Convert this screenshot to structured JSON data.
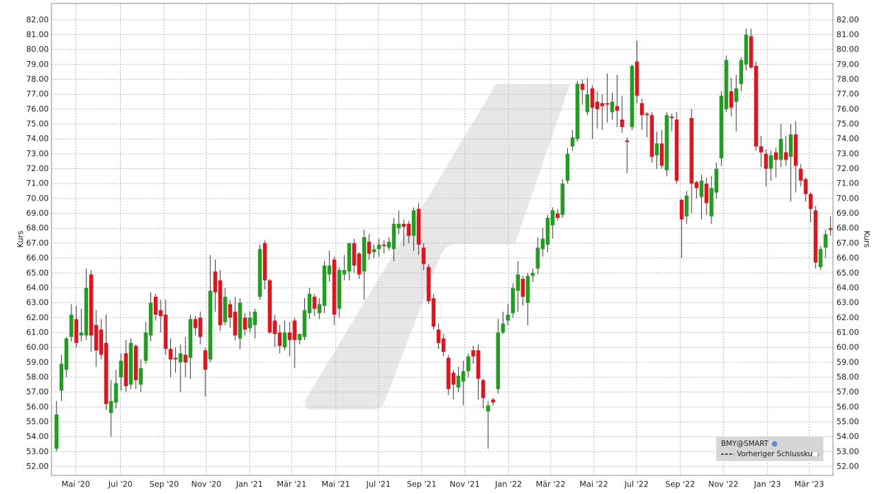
{
  "chart_data": {
    "type": "candlestick",
    "y_label": "Kurs",
    "y2_label": "Kurs",
    "series_name": "BMY@SMART",
    "reference_name": "Vorheriger Schlusskurs",
    "legend_position": "lower right",
    "grid": true,
    "up_color": "#1f9e1f",
    "down_color": "#e3121b",
    "xlim": [
      -1,
      156.5
    ],
    "ylim": [
      51.4,
      83.1
    ],
    "xticks": [
      {
        "value": 3.9,
        "label": "Mai '20"
      },
      {
        "value": 12.9,
        "label": "Jul '20"
      },
      {
        "value": 21.7,
        "label": "Sep '20"
      },
      {
        "value": 30.2,
        "label": "Nov '20"
      },
      {
        "value": 38.9,
        "label": "Jan '21"
      },
      {
        "value": 47.4,
        "label": "Mär '21"
      },
      {
        "value": 56.3,
        "label": "Mai '21"
      },
      {
        "value": 64.9,
        "label": "Jul '21"
      },
      {
        "value": 73.6,
        "label": "Sep '21"
      },
      {
        "value": 82.3,
        "label": "Nov '21"
      },
      {
        "value": 91.1,
        "label": "Jan '22"
      },
      {
        "value": 99.6,
        "label": "Mär '22"
      },
      {
        "value": 108.3,
        "label": "Mai '22"
      },
      {
        "value": 116.9,
        "label": "Jul '22"
      },
      {
        "value": 125.7,
        "label": "Sep '22"
      },
      {
        "value": 134.4,
        "label": "Nov '22"
      },
      {
        "value": 143.3,
        "label": "Jan '23"
      },
      {
        "value": 151.7,
        "label": "Mär '23"
      }
    ],
    "yticks": [
      {
        "value": 52,
        "label": "52.00"
      },
      {
        "value": 53,
        "label": "53.00"
      },
      {
        "value": 54,
        "label": "54.00"
      },
      {
        "value": 55,
        "label": "55.00"
      },
      {
        "value": 56,
        "label": "56.00"
      },
      {
        "value": 57,
        "label": "57.00"
      },
      {
        "value": 58,
        "label": "58.00"
      },
      {
        "value": 59,
        "label": "59.00"
      },
      {
        "value": 60,
        "label": "60.00"
      },
      {
        "value": 61,
        "label": "61.00"
      },
      {
        "value": 62,
        "label": "62.00"
      },
      {
        "value": 63,
        "label": "63.00"
      },
      {
        "value": 64,
        "label": "64.00"
      },
      {
        "value": 65,
        "label": "65.00"
      },
      {
        "value": 66,
        "label": "66.00"
      },
      {
        "value": 67,
        "label": "67.00"
      },
      {
        "value": 68,
        "label": "68.00"
      },
      {
        "value": 69,
        "label": "69.00"
      },
      {
        "value": 70,
        "label": "70.00"
      },
      {
        "value": 71,
        "label": "71.00"
      },
      {
        "value": 72,
        "label": "72.00"
      },
      {
        "value": 73,
        "label": "73.00"
      },
      {
        "value": 74,
        "label": "74.00"
      },
      {
        "value": 75,
        "label": "75.00"
      },
      {
        "value": 76,
        "label": "76.00"
      },
      {
        "value": 77,
        "label": "77.00"
      },
      {
        "value": 78,
        "label": "78.00"
      },
      {
        "value": 79,
        "label": "79.00"
      },
      {
        "value": 80,
        "label": "80.00"
      },
      {
        "value": 81,
        "label": "81.00"
      },
      {
        "value": 82,
        "label": "82.00"
      }
    ],
    "open": [
      53.2,
      57.1,
      58.5,
      60.7,
      61.9,
      60.8,
      60.8,
      64.9,
      61.5,
      61.2,
      60.3,
      55.6,
      56.3,
      58.0,
      59.6,
      57.5,
      60.1,
      57.5,
      59.1,
      60.8,
      63.4,
      62.5,
      62.2,
      59.9,
      59.3,
      59.0,
      59.5,
      59.3,
      61.9,
      62.0,
      59.8,
      59.2,
      65.1,
      64.5,
      61.7,
      62.9,
      62.4,
      60.6,
      62.0,
      61.3,
      61.5,
      63.4,
      67.0,
      64.5,
      61.8,
      61.0,
      60.0,
      61.0,
      61.8,
      60.5,
      60.7,
      62.3,
      63.4,
      62.3,
      62.8,
      64.9,
      65.9,
      62.6,
      64.9,
      65.1,
      67.0,
      66.3,
      65.1,
      67.1,
      66.4,
      66.6,
      66.9,
      66.7,
      66.6,
      68.0,
      68.3,
      68.3,
      67.5,
      69.3,
      66.7,
      65.4,
      63.3,
      61.2,
      60.6,
      59.3,
      58.3,
      57.3,
      57.7,
      58.4,
      59.8,
      59.8,
      57.8,
      55.7,
      56.5,
      57.2,
      61.0,
      61.8,
      62.3,
      63.8,
      64.6,
      63.0,
      64.8,
      65.3,
      66.6,
      66.9,
      68.2,
      69.0,
      68.9,
      71.2,
      73.5,
      74.0,
      77.7,
      75.8,
      77.4,
      76.5,
      76.4,
      76.4,
      75.8,
      76.2,
      75.3,
      73.9,
      74.8,
      79.2,
      76.4,
      75.7,
      75.6,
      72.9,
      73.7,
      71.9,
      75.5,
      75.3,
      69.9,
      68.8,
      75.4,
      71.1,
      70.1,
      71.0,
      68.8,
      70.4,
      72.7,
      76.0,
      77.2,
      76.5,
      77.7,
      79.0,
      80.9,
      78.9,
      73.5,
      73.0,
      72.0,
      73.1,
      72.6,
      73.1,
      72.8,
      74.3,
      72.0,
      71.3,
      70.3,
      69.2,
      65.4,
      66.7,
      68.0
    ],
    "high": [
      56.4,
      59.5,
      60.7,
      62.9,
      62.8,
      62.6,
      65.3,
      65.2,
      62.5,
      61.9,
      62.2,
      57.8,
      58.5,
      59.6,
      60.5,
      60.6,
      60.2,
      59.2,
      61.7,
      63.7,
      63.6,
      63.2,
      63.2,
      60.6,
      60.0,
      60.2,
      60.7,
      62.2,
      62.1,
      62.4,
      60.0,
      66.2,
      65.9,
      65.2,
      64.0,
      63.2,
      63.4,
      63.3,
      62.3,
      62.4,
      62.6,
      66.9,
      67.2,
      64.6,
      62.2,
      61.5,
      61.8,
      61.7,
      62.0,
      60.9,
      63.3,
      64.0,
      63.6,
      63.3,
      65.8,
      66.5,
      66.1,
      65.4,
      66.2,
      67.0,
      67.3,
      66.4,
      67.9,
      67.6,
      66.9,
      67.3,
      67.2,
      67.4,
      68.7,
      69.2,
      68.6,
      68.5,
      69.4,
      69.7,
      67.0,
      65.6,
      63.6,
      61.6,
      60.9,
      59.5,
      58.5,
      58.7,
      59.1,
      59.6,
      60.1,
      60.2,
      57.9,
      56.4,
      56.6,
      61.9,
      62.4,
      62.9,
      64.3,
      65.8,
      64.8,
      65.0,
      65.3,
      67.4,
      68.0,
      68.9,
      69.4,
      69.3,
      71.3,
      73.4,
      74.6,
      77.9,
      78.0,
      78.1,
      77.6,
      77.2,
      77.0,
      78.4,
      77.1,
      78.3,
      76.9,
      74.1,
      79.0,
      80.6,
      76.7,
      75.8,
      75.8,
      74.5,
      74.6,
      75.8,
      75.7,
      75.8,
      70.0,
      70.5,
      76.0,
      71.2,
      71.6,
      71.4,
      71.5,
      72.4,
      77.2,
      79.6,
      78.1,
      78.3,
      79.5,
      81.4,
      81.4,
      79.2,
      74.2,
      73.3,
      73.2,
      73.4,
      75.0,
      74.2,
      75.0,
      75.2,
      72.3,
      71.4,
      70.4,
      69.5,
      66.8,
      67.9,
      68.8
    ],
    "low": [
      53.0,
      56.4,
      58.0,
      60.4,
      60.0,
      60.4,
      60.5,
      59.7,
      58.7,
      59.2,
      55.8,
      54.0,
      55.9,
      57.1,
      57.0,
      57.2,
      57.2,
      57.0,
      58.9,
      60.4,
      61.8,
      61.0,
      59.5,
      58.0,
      58.3,
      57.0,
      58.0,
      57.9,
      60.8,
      60.2,
      56.7,
      59.0,
      62.4,
      61.1,
      61.5,
      61.3,
      60.5,
      59.9,
      60.8,
      61.0,
      60.6,
      63.2,
      63.9,
      60.9,
      60.0,
      59.6,
      59.8,
      59.4,
      58.6,
      60.2,
      60.5,
      61.9,
      62.1,
      61.9,
      62.3,
      64.4,
      61.5,
      62.0,
      64.5,
      64.5,
      65.0,
      64.6,
      63.2,
      65.9,
      66.0,
      66.1,
      66.3,
      66.5,
      65.8,
      67.6,
      66.8,
      67.0,
      66.5,
      66.2,
      65.2,
      62.9,
      61.2,
      59.9,
      59.4,
      56.8,
      56.5,
      57.0,
      56.1,
      58.0,
      58.9,
      56.5,
      55.9,
      53.2,
      56.1,
      56.9,
      60.9,
      61.5,
      62.0,
      62.4,
      62.8,
      61.5,
      64.4,
      64.9,
      66.1,
      66.4,
      67.3,
      68.5,
      68.7,
      71.0,
      73.2,
      73.8,
      76.3,
      75.6,
      74.0,
      74.7,
      74.6,
      75.1,
      75.3,
      74.8,
      74.4,
      71.7,
      74.6,
      76.4,
      74.6,
      74.1,
      72.4,
      72.0,
      72.0,
      71.5,
      74.5,
      71.0,
      66.0,
      68.3,
      69.0,
      70.0,
      68.6,
      68.9,
      68.3,
      70.0,
      72.2,
      75.8,
      75.5,
      74.5,
      77.2,
      78.6,
      78.7,
      73.2,
      72.1,
      70.8,
      71.2,
      71.4,
      72.1,
      72.2,
      69.8,
      70.4,
      70.8,
      69.8,
      68.4,
      65.3,
      65.2,
      66.0,
      67.5
    ],
    "close": [
      55.5,
      58.9,
      60.6,
      62.2,
      60.3,
      61.0,
      64.0,
      60.8,
      59.8,
      59.5,
      56.2,
      56.4,
      57.6,
      59.1,
      57.4,
      60.3,
      57.8,
      58.6,
      61.0,
      63.0,
      62.2,
      62.1,
      59.9,
      59.2,
      59.2,
      59.6,
      59.0,
      61.9,
      61.3,
      60.7,
      58.5,
      63.8,
      63.7,
      61.5,
      63.4,
      62.0,
      60.8,
      63.0,
      61.2,
      62.0,
      62.4,
      66.6,
      64.5,
      61.0,
      60.9,
      60.1,
      61.0,
      60.5,
      60.5,
      60.9,
      62.5,
      63.6,
      62.6,
      62.9,
      65.5,
      65.5,
      62.2,
      65.2,
      65.2,
      67.0,
      65.5,
      64.9,
      67.4,
      66.3,
      66.6,
      66.9,
      66.8,
      67.1,
      68.3,
      68.3,
      68.1,
      67.5,
      69.2,
      66.9,
      65.6,
      63.1,
      61.4,
      60.3,
      59.7,
      57.2,
      57.5,
      58.1,
      58.4,
      59.4,
      59.4,
      57.9,
      56.6,
      56.1,
      56.3,
      61.0,
      61.6,
      62.2,
      64.0,
      64.9,
      63.4,
      64.8,
      65.0,
      66.7,
      67.3,
      68.7,
      69.2,
      68.7,
      71.0,
      73.0,
      74.1,
      77.7,
      77.3,
      77.0,
      76.1,
      76.0,
      76.2,
      76.3,
      76.5,
      75.9,
      74.8,
      73.8,
      78.9,
      76.9,
      75.6,
      75.6,
      72.8,
      73.7,
      72.2,
      75.6,
      75.4,
      71.2,
      68.6,
      70.2,
      71.0,
      70.7,
      71.2,
      69.7,
      70.7,
      72.0,
      76.9,
      79.3,
      76.1,
      77.4,
      79.3,
      81.0,
      78.8,
      73.5,
      73.1,
      72.0,
      72.9,
      72.6,
      74.0,
      72.6,
      74.3,
      72.2,
      71.2,
      70.3,
      69.3,
      65.7,
      66.6,
      67.6,
      67.9
    ]
  }
}
